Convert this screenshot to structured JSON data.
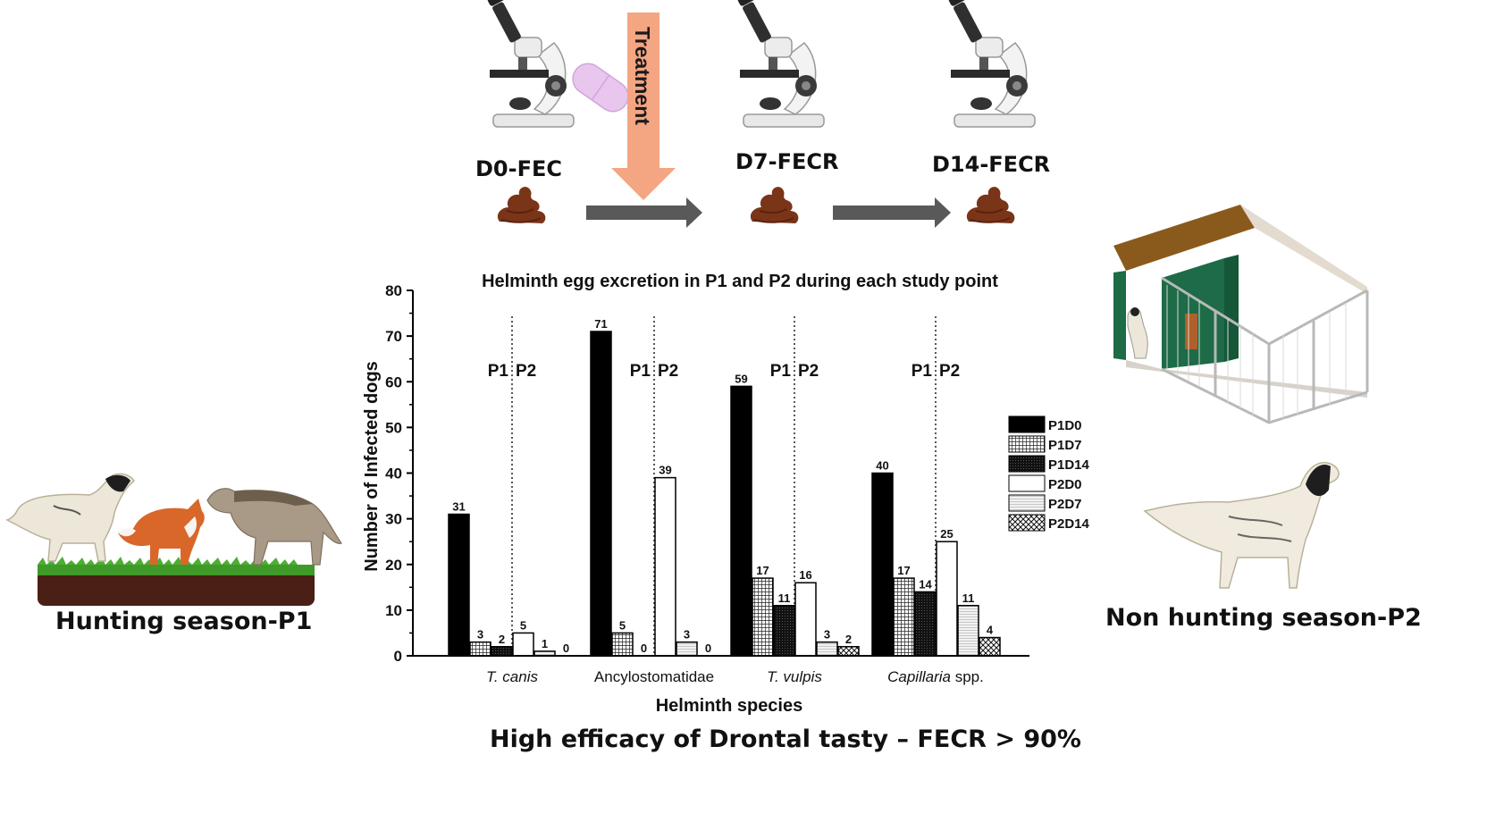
{
  "workflow": {
    "stages": [
      "D0-FEC",
      "D7-FECR",
      "D14-FECR"
    ],
    "treatment_label": "Treatment"
  },
  "seasons": {
    "left": "Hunting season-P1",
    "right": "Non hunting season-P2"
  },
  "conclusion": "High efficacy of Drontal tasty – FECR > 90%",
  "colors": {
    "black": "#000000",
    "arrow": "#595959",
    "treatment": "#f4a582",
    "pill": "#e8c6ee",
    "poop": "#7a3418"
  },
  "chart_data": {
    "type": "bar",
    "title": "Helminth egg excretion in P1 and P2 during each study point",
    "xlabel": "Helminth species",
    "ylabel": "Number of Infected dogs",
    "ylim": [
      0,
      80
    ],
    "yticks": [
      0,
      10,
      20,
      30,
      40,
      50,
      60,
      70,
      80
    ],
    "categories": [
      "T. canis",
      "Ancylostomatidae",
      "T. vulpis",
      "Capillaria spp."
    ],
    "category_parts": [
      {
        "italic": "T. canis",
        "plain": ""
      },
      {
        "italic": "",
        "plain": "Ancylostomatidae"
      },
      {
        "italic": "T. vulpis",
        "plain": ""
      },
      {
        "italic": "Capillaria",
        "plain": " spp."
      }
    ],
    "period_labels": [
      "P1",
      "P2"
    ],
    "series": [
      {
        "name": "P1D0",
        "values": [
          31,
          71,
          59,
          40
        ],
        "pattern": "solid-black"
      },
      {
        "name": "P1D7",
        "values": [
          3,
          5,
          17,
          17
        ],
        "pattern": "grid"
      },
      {
        "name": "P1D14",
        "values": [
          2,
          0,
          11,
          14
        ],
        "pattern": "dark"
      },
      {
        "name": "P2D0",
        "values": [
          5,
          39,
          16,
          25
        ],
        "pattern": "white"
      },
      {
        "name": "P2D7",
        "values": [
          1,
          3,
          3,
          11
        ],
        "pattern": "light-lines"
      },
      {
        "name": "P2D14",
        "values": [
          0,
          0,
          2,
          4
        ],
        "pattern": "crosshatch"
      }
    ],
    "legend_position": "right"
  }
}
